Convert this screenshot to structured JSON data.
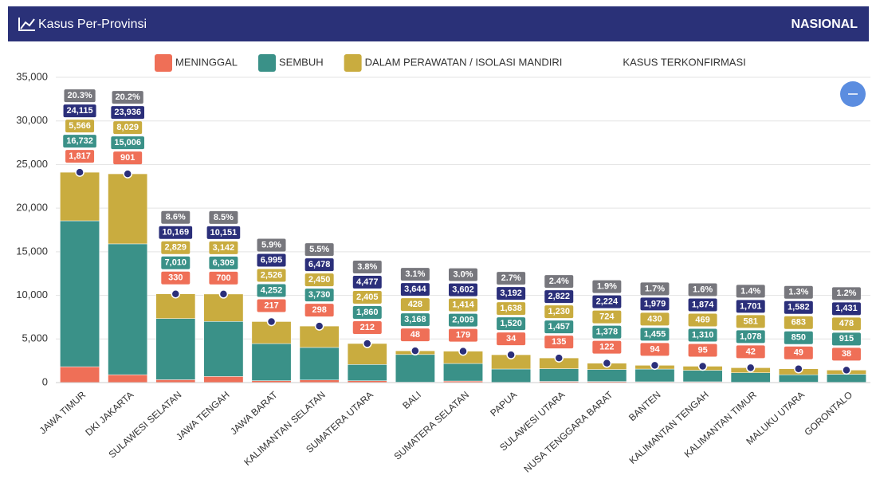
{
  "header": {
    "title": "Kasus Per-Provinsi",
    "scope": "NASIONAL"
  },
  "chart_data": {
    "type": "bar",
    "stacked": true,
    "grid": true,
    "categories": [
      "JAWA TIMUR",
      "DKI JAKARTA",
      "SULAWESI SELATAN",
      "JAWA TENGAH",
      "JAWA BARAT",
      "KALIMANTAN SELATAN",
      "SUMATERA UTARA",
      "BALI",
      "SUMATERA SELATAN",
      "PAPUA",
      "SULAWESI UTARA",
      "NUSA TENGGARA BARAT",
      "BANTEN",
      "KALIMANTAN TENGAH",
      "KALIMANTAN TIMUR",
      "MALUKU UTARA",
      "GORONTALO"
    ],
    "ylim": [
      0,
      35000
    ],
    "yticks": [
      0,
      {
        "value": 5000,
        "label": "5,000"
      },
      {
        "value": 10000,
        "label": "10,000"
      },
      {
        "value": 15000,
        "label": "15,000"
      },
      {
        "value": 20000,
        "label": "20,000"
      },
      {
        "value": 25000,
        "label": "25,000"
      },
      {
        "value": 30000,
        "label": "30,000"
      },
      {
        "value": 35000,
        "label": "35,000"
      }
    ],
    "series": [
      {
        "name": "MENINGGAL",
        "type": "bar",
        "color": "#ef6f57",
        "values": [
          1817,
          901,
          330,
          700,
          217,
          298,
          212,
          48,
          179,
          34,
          135,
          122,
          94,
          95,
          42,
          49,
          38
        ],
        "value_labels": [
          "1,817",
          "901",
          "330",
          "700",
          "217",
          "298",
          "212",
          "48",
          "179",
          "34",
          "135",
          "122",
          "94",
          "95",
          "42",
          "49",
          "38"
        ]
      },
      {
        "name": "SEMBUH",
        "type": "bar",
        "color": "#3a9188",
        "values": [
          16732,
          15006,
          7010,
          6309,
          4252,
          3730,
          1860,
          3168,
          2009,
          1520,
          1457,
          1378,
          1455,
          1310,
          1078,
          850,
          915
        ],
        "value_labels": [
          "16,732",
          "15,006",
          "7,010",
          "6,309",
          "4,252",
          "3,730",
          "1,860",
          "3,168",
          "2,009",
          "1,520",
          "1,457",
          "1,378",
          "1,455",
          "1,310",
          "1,078",
          "850",
          "915"
        ]
      },
      {
        "name": "DALAM PERAWATAN / ISOLASI MANDIRI",
        "type": "bar",
        "color": "#c9ac3f",
        "values": [
          5566,
          8029,
          2829,
          3142,
          2526,
          2450,
          2405,
          428,
          1414,
          1638,
          1230,
          724,
          430,
          469,
          581,
          683,
          478
        ],
        "value_labels": [
          "5,566",
          "8,029",
          "2,829",
          "3,142",
          "2,526",
          "2,450",
          "2,405",
          "428",
          "1,414",
          "1,638",
          "1,230",
          "724",
          "430",
          "469",
          "581",
          "683",
          "478"
        ]
      },
      {
        "name": "KASUS TERKONFIRMASI",
        "type": "scatter",
        "color": "#2b2f7a",
        "values": [
          24115,
          23936,
          10169,
          10151,
          6995,
          6478,
          4477,
          3644,
          3602,
          3192,
          2822,
          2224,
          1979,
          1874,
          1701,
          1582,
          1431
        ],
        "value_labels": [
          "24,115",
          "23,936",
          "10,169",
          "10,151",
          "6,995",
          "6,478",
          "4,477",
          "3,644",
          "3,602",
          "3,192",
          "2,822",
          "2,224",
          "1,979",
          "1,874",
          "1,701",
          "1,582",
          "1,431"
        ]
      }
    ],
    "share": {
      "color": "#77777d",
      "values": [
        20.3,
        20.2,
        8.6,
        8.5,
        5.9,
        5.5,
        3.8,
        3.1,
        3.0,
        2.7,
        2.4,
        1.9,
        1.7,
        1.6,
        1.4,
        1.3,
        1.2
      ],
      "value_labels": [
        "20.3%",
        "20.2%",
        "8.6%",
        "8.5%",
        "5.9%",
        "5.5%",
        "3.8%",
        "3.1%",
        "3.0%",
        "2.7%",
        "2.4%",
        "1.9%",
        "1.7%",
        "1.6%",
        "1.4%",
        "1.3%",
        "1.2%"
      ]
    }
  }
}
